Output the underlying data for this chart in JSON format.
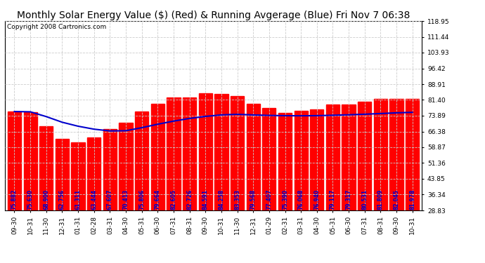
{
  "title": "Monthly Solar Energy Value ($) (Red) & Running Avgerage (Blue) Fri Nov 7 06:38",
  "copyright": "Copyright 2008 Cartronics.com",
  "bar_color": "#ff0000",
  "line_color": "#0000cc",
  "background_color": "#ffffff",
  "grid_color": "#cccccc",
  "text_color_on_bar": "#0000cc",
  "categories": [
    "09-30",
    "10-31",
    "11-30",
    "12-31",
    "01-31",
    "02-28",
    "03-31",
    "04-30",
    "05-31",
    "06-30",
    "07-31",
    "08-31",
    "09-30",
    "10-31",
    "11-30",
    "12-31",
    "01-29",
    "02-31",
    "03-31",
    "04-30",
    "05-31",
    "06-30",
    "07-31",
    "08-31",
    "09-30",
    "10-31"
  ],
  "values": [
    75.882,
    75.63,
    68.9,
    62.756,
    61.311,
    63.444,
    67.607,
    70.413,
    75.806,
    79.664,
    82.605,
    82.726,
    84.591,
    84.258,
    83.353,
    79.568,
    77.407,
    75.39,
    76.068,
    76.94,
    79.117,
    79.317,
    80.531,
    81.809,
    82.045,
    81.978
  ],
  "running_avg": [
    75.882,
    75.756,
    73.471,
    70.792,
    68.897,
    67.491,
    66.648,
    66.743,
    68.195,
    69.844,
    71.321,
    72.596,
    73.559,
    74.279,
    74.557,
    74.264,
    74.035,
    73.904,
    73.855,
    73.925,
    74.11,
    74.333,
    74.604,
    74.921,
    75.268,
    75.497
  ],
  "ylim_min": 28.83,
  "ylim_max": 118.95,
  "yticks": [
    28.83,
    36.34,
    43.85,
    51.36,
    58.87,
    66.38,
    73.89,
    81.4,
    88.91,
    96.42,
    103.93,
    111.44,
    118.95
  ],
  "title_fontsize": 10,
  "copyright_fontsize": 6.5,
  "tick_fontsize": 6.5,
  "bar_label_fontsize": 5.5
}
